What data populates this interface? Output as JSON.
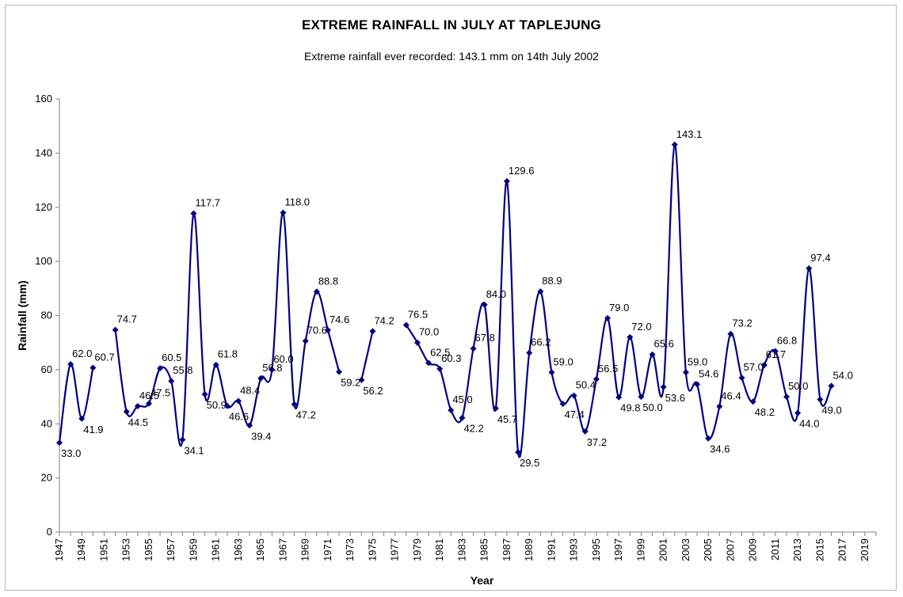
{
  "chart_data": {
    "type": "line",
    "title": "EXTREME RAINFALL IN JULY AT TAPLEJUNG",
    "subtitle": "Extreme rainfall ever recorded: 143.1 mm on 14th July 2002",
    "xlabel": "Year",
    "ylabel": "Rainfall (mm)",
    "xlim": [
      1947,
      2020
    ],
    "ylim": [
      0,
      160
    ],
    "yticks": [
      0,
      20,
      40,
      60,
      80,
      100,
      120,
      140,
      160
    ],
    "xtick_labels": [
      "1947",
      "1949",
      "1951",
      "1953",
      "1955",
      "1957",
      "1959",
      "1961",
      "1963",
      "1965",
      "1967",
      "1969",
      "1971",
      "1973",
      "1975",
      "1977",
      "1979",
      "1981",
      "1983",
      "1985",
      "1987",
      "1989",
      "1991",
      "1993",
      "1995",
      "1997",
      "1999",
      "2001",
      "2003",
      "2005",
      "2007",
      "2009",
      "2011",
      "2013",
      "2015",
      "2017",
      "2019"
    ],
    "grid": false,
    "legend": "none",
    "line_color": "#000080",
    "series": [
      {
        "points": [
          [
            1947,
            33.0
          ],
          [
            1948,
            62.0
          ],
          [
            1949,
            41.9
          ],
          [
            1950,
            60.7
          ],
          [
            1951,
            null
          ],
          [
            1952,
            74.7
          ],
          [
            1953,
            44.5
          ],
          [
            1954,
            46.5
          ],
          [
            1955,
            47.5
          ],
          [
            1956,
            60.5
          ],
          [
            1957,
            55.8
          ],
          [
            1958,
            34.1
          ],
          [
            1959,
            117.7
          ],
          [
            1960,
            50.9
          ],
          [
            1961,
            61.8
          ],
          [
            1962,
            46.6
          ],
          [
            1963,
            48.4
          ],
          [
            1964,
            39.4
          ],
          [
            1965,
            56.8
          ],
          [
            1966,
            60.0
          ],
          [
            1967,
            118.0
          ],
          [
            1968,
            47.2
          ],
          [
            1969,
            70.6
          ],
          [
            1970,
            88.8
          ],
          [
            1971,
            74.6
          ],
          [
            1972,
            59.2
          ],
          [
            1973,
            null
          ],
          [
            1974,
            56.2
          ],
          [
            1975,
            74.2
          ],
          [
            1976,
            null
          ],
          [
            1977,
            null
          ],
          [
            1978,
            76.5
          ],
          [
            1979,
            70.0
          ],
          [
            1980,
            62.5
          ],
          [
            1981,
            60.3
          ],
          [
            1982,
            45.0
          ],
          [
            1983,
            42.2
          ],
          [
            1984,
            67.8
          ],
          [
            1985,
            84.0
          ],
          [
            1986,
            45.7
          ],
          [
            1987,
            129.6
          ],
          [
            1988,
            29.5
          ],
          [
            1989,
            66.2
          ],
          [
            1990,
            88.9
          ],
          [
            1991,
            59.0
          ],
          [
            1992,
            47.4
          ],
          [
            1993,
            50.4
          ],
          [
            1994,
            37.2
          ],
          [
            1995,
            56.5
          ],
          [
            1996,
            79.0
          ],
          [
            1997,
            49.8
          ],
          [
            1998,
            72.0
          ],
          [
            1999,
            50.0
          ],
          [
            2000,
            65.6
          ],
          [
            2001,
            53.6
          ],
          [
            2002,
            143.1
          ],
          [
            2003,
            59.0
          ],
          [
            2004,
            54.6
          ],
          [
            2005,
            34.6
          ],
          [
            2006,
            46.4
          ],
          [
            2007,
            73.2
          ],
          [
            2008,
            57.0
          ],
          [
            2009,
            48.2
          ],
          [
            2010,
            61.7
          ],
          [
            2011,
            66.8
          ],
          [
            2012,
            50.0
          ],
          [
            2013,
            44.0
          ],
          [
            2014,
            97.4
          ],
          [
            2015,
            49.0
          ],
          [
            2016,
            54.0
          ]
        ]
      }
    ]
  }
}
